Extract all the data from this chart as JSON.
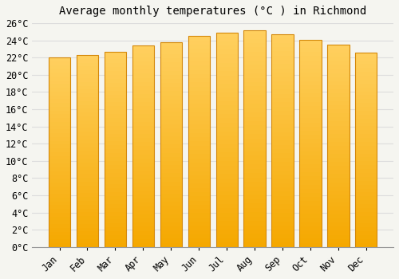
{
  "title": "Average monthly temperatures (°C ) in Richmond",
  "months": [
    "Jan",
    "Feb",
    "Mar",
    "Apr",
    "May",
    "Jun",
    "Jul",
    "Aug",
    "Sep",
    "Oct",
    "Nov",
    "Dec"
  ],
  "values": [
    22.0,
    22.3,
    22.7,
    23.4,
    23.8,
    24.5,
    24.9,
    25.2,
    24.7,
    24.1,
    23.5,
    22.6
  ],
  "bar_color_bottom": "#F5A800",
  "bar_color_top": "#FFD060",
  "bar_edge_color": "#D4880A",
  "background_color": "#f5f5f0",
  "plot_bg_color": "#f5f5f0",
  "grid_color": "#dddddd",
  "ylim": [
    0,
    26
  ],
  "ytick_step": 2,
  "title_fontsize": 10,
  "tick_fontsize": 8.5,
  "font_family": "monospace"
}
